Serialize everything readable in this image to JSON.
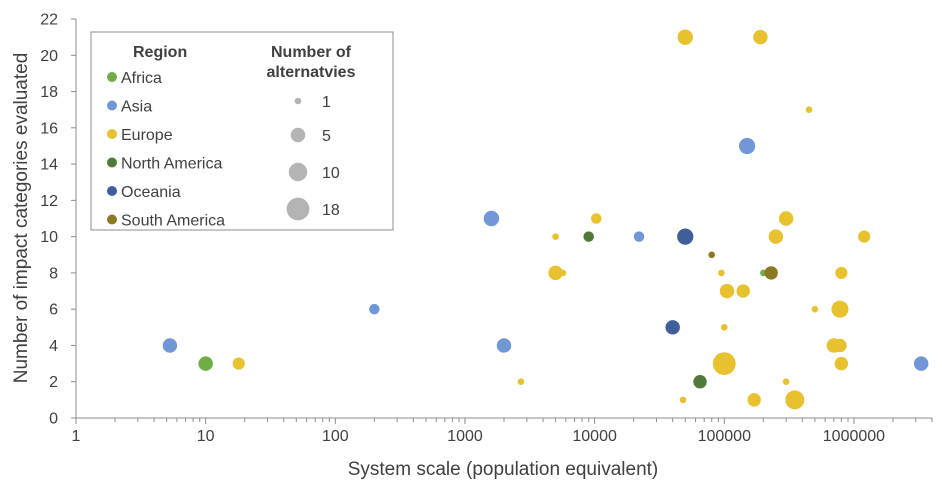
{
  "chart_data": {
    "type": "scatter",
    "x_scale": "log",
    "xlabel": "System scale (population equivalent)",
    "ylabel": "Number of impact categories evaluated",
    "xlim": [
      1,
      4000000
    ],
    "ylim": [
      0,
      22
    ],
    "x_tick_labels": [
      "1",
      "10",
      "100",
      "1000",
      "10000",
      "100000",
      "1000000"
    ],
    "y_tick_labels": [
      "0",
      "2",
      "4",
      "6",
      "8",
      "10",
      "12",
      "14",
      "16",
      "18",
      "20",
      "22"
    ],
    "grid": false,
    "legend_position": "top-left",
    "region_legend_title": "Region",
    "size_legend_title_line1": "Number of",
    "size_legend_title_line2": "alternatvies",
    "size_legend": [
      {
        "label": "1",
        "value": 1
      },
      {
        "label": "5",
        "value": 5
      },
      {
        "label": "10",
        "value": 10
      },
      {
        "label": "18",
        "value": 18
      }
    ],
    "series": [
      {
        "name": "Africa",
        "color": "#70AD47",
        "points": [
          {
            "x": 10,
            "y": 3,
            "size": 5
          },
          {
            "x": 200000,
            "y": 8,
            "size": 1
          }
        ]
      },
      {
        "name": "Asia",
        "color": "#7297D6",
        "points": [
          {
            "x": 5.3,
            "y": 4,
            "size": 5
          },
          {
            "x": 200,
            "y": 6,
            "size": 2
          },
          {
            "x": 1600,
            "y": 11,
            "size": 6
          },
          {
            "x": 2000,
            "y": 4,
            "size": 5
          },
          {
            "x": 22000,
            "y": 10,
            "size": 2
          },
          {
            "x": 150000,
            "y": 15,
            "size": 7
          },
          {
            "x": 3300000,
            "y": 3,
            "size": 5
          }
        ]
      },
      {
        "name": "Europe",
        "color": "#E8C12F",
        "points": [
          {
            "x": 18,
            "y": 3,
            "size": 3
          },
          {
            "x": 2700,
            "y": 2,
            "size": 1
          },
          {
            "x": 5000,
            "y": 10,
            "size": 1
          },
          {
            "x": 5000,
            "y": 8,
            "size": 5
          },
          {
            "x": 5700,
            "y": 8,
            "size": 1
          },
          {
            "x": 10300,
            "y": 11,
            "size": 2
          },
          {
            "x": 48000,
            "y": 1,
            "size": 1
          },
          {
            "x": 50000,
            "y": 21,
            "size": 6
          },
          {
            "x": 95000,
            "y": 8,
            "size": 1
          },
          {
            "x": 100000,
            "y": 5,
            "size": 1
          },
          {
            "x": 100000,
            "y": 3,
            "size": 18
          },
          {
            "x": 105000,
            "y": 7,
            "size": 5
          },
          {
            "x": 140000,
            "y": 7,
            "size": 4
          },
          {
            "x": 170000,
            "y": 1,
            "size": 4
          },
          {
            "x": 190000,
            "y": 21,
            "size": 5
          },
          {
            "x": 250000,
            "y": 10,
            "size": 5
          },
          {
            "x": 300000,
            "y": 2,
            "size": 1
          },
          {
            "x": 300000,
            "y": 11,
            "size": 5
          },
          {
            "x": 350000,
            "y": 1,
            "size": 11
          },
          {
            "x": 450000,
            "y": 17,
            "size": 1
          },
          {
            "x": 500000,
            "y": 6,
            "size": 1
          },
          {
            "x": 700000,
            "y": 4,
            "size": 5
          },
          {
            "x": 780000,
            "y": 4,
            "size": 4
          },
          {
            "x": 780000,
            "y": 6,
            "size": 8
          },
          {
            "x": 800000,
            "y": 3,
            "size": 4
          },
          {
            "x": 800000,
            "y": 8,
            "size": 3
          },
          {
            "x": 1200000,
            "y": 10,
            "size": 3
          }
        ]
      },
      {
        "name": "North America",
        "color": "#507A3A",
        "points": [
          {
            "x": 9000,
            "y": 10,
            "size": 2
          },
          {
            "x": 65000,
            "y": 2,
            "size": 4
          }
        ]
      },
      {
        "name": "Oceania",
        "color": "#3F5E9A",
        "points": [
          {
            "x": 40000,
            "y": 5,
            "size": 5
          },
          {
            "x": 50000,
            "y": 10,
            "size": 7
          }
        ]
      },
      {
        "name": "South America",
        "color": "#8C7A22",
        "points": [
          {
            "x": 80000,
            "y": 9,
            "size": 1
          },
          {
            "x": 230000,
            "y": 8,
            "size": 4
          }
        ]
      }
    ]
  }
}
